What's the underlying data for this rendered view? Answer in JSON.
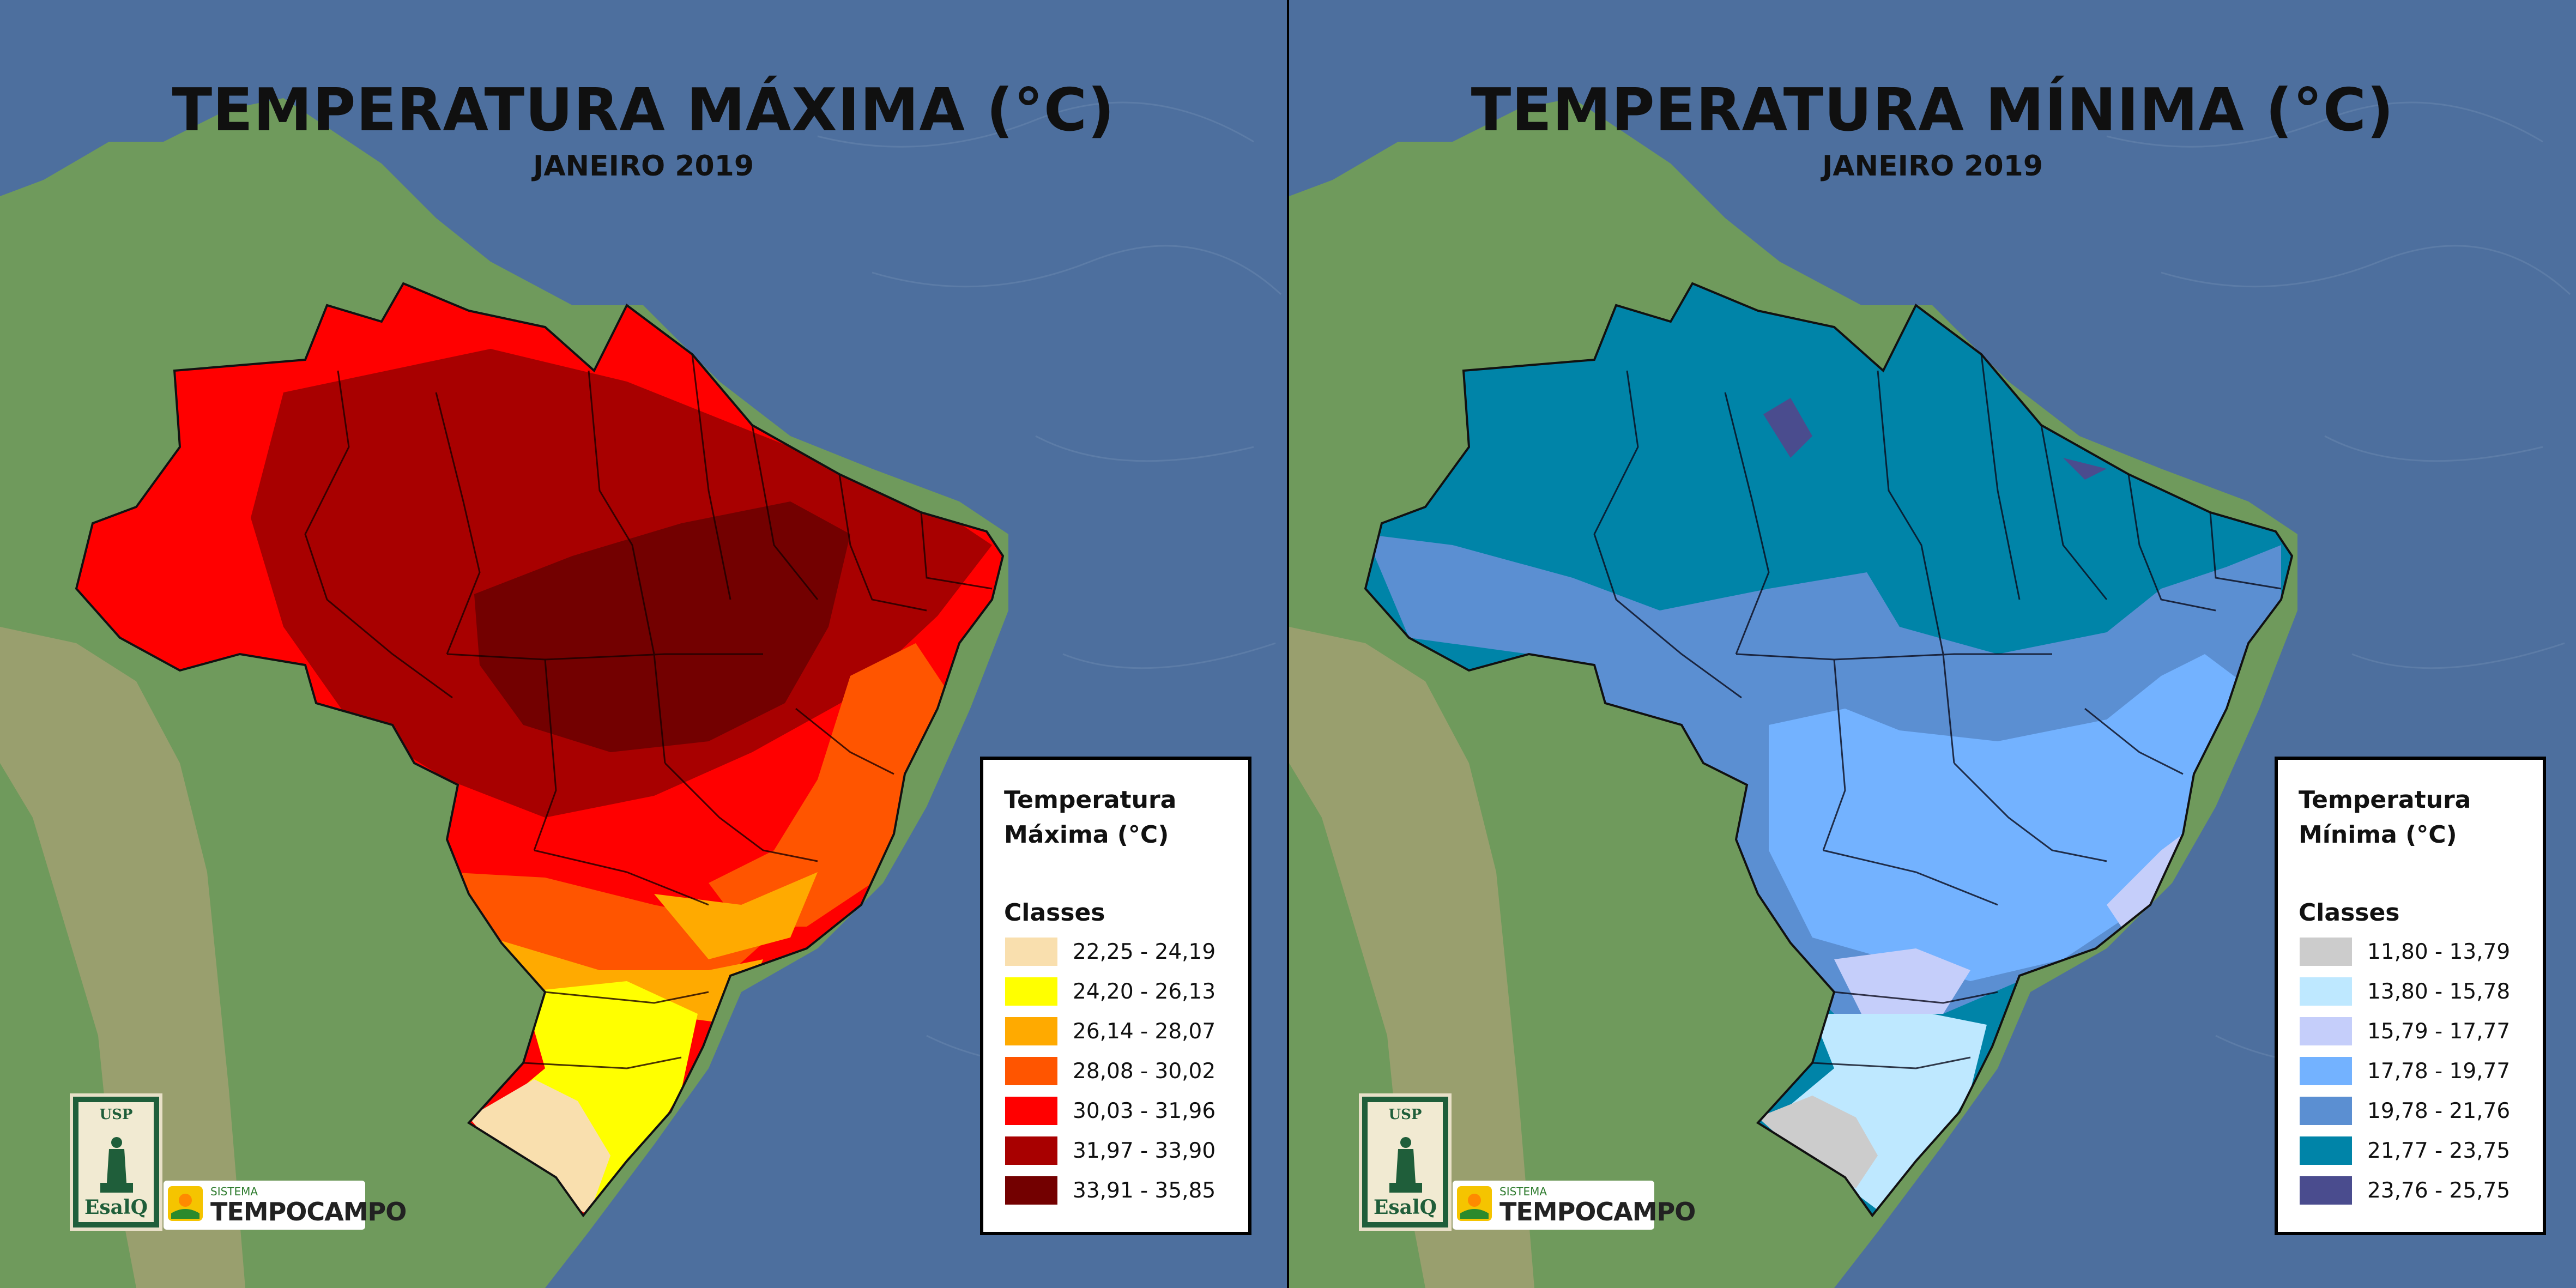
{
  "panels": [
    {
      "title": "TEMPERATURA MÁXIMA (°C)",
      "subtitle": "JANEIRO 2019",
      "legend": {
        "title_line1": "Temperatura",
        "title_line2": "Máxima (°C)",
        "classes_label": "Classes",
        "items": [
          {
            "label": "22,25 - 24,19",
            "color": "#f9dfae"
          },
          {
            "label": "24,20 - 26,13",
            "color": "#ffff00"
          },
          {
            "label": "26,14 - 28,07",
            "color": "#ffaa00"
          },
          {
            "label": "28,08 - 30,02",
            "color": "#ff5500"
          },
          {
            "label": "30,03 - 31,96",
            "color": "#ff0000"
          },
          {
            "label": "31,97 - 33,90",
            "color": "#a80000"
          },
          {
            "label": "33,91 - 35,85",
            "color": "#730000"
          }
        ]
      }
    },
    {
      "title": "TEMPERATURA MÍNIMA (°C)",
      "subtitle": "JANEIRO 2019",
      "legend": {
        "title_line1": "Temperatura",
        "title_line2": "Mínima (°C)",
        "classes_label": "Classes",
        "items": [
          {
            "label": "11,80 - 13,79",
            "color": "#cccccc"
          },
          {
            "label": "13,80 - 15,78",
            "color": "#bee8ff"
          },
          {
            "label": "15,79 - 17,77",
            "color": "#c5cefa"
          },
          {
            "label": "17,78 - 19,77",
            "color": "#73b2ff"
          },
          {
            "label": "19,78 - 21,76",
            "color": "#5b8fd2"
          },
          {
            "label": "21,77 - 23,75",
            "color": "#0084a8"
          },
          {
            "label": "23,76 - 25,75",
            "color": "#4a4c8e"
          }
        ]
      }
    }
  ],
  "logos": {
    "usp_text": "USP",
    "esalq_text": "EsalQ",
    "sistema_text": "SISTEMA",
    "tempocampo_text": "TEMPOCAMPO"
  },
  "colors": {
    "ocean": "#4d6f9e",
    "land": "#6f9a5c",
    "max_zones": [
      "#f9dfae",
      "#ffff00",
      "#ffaa00",
      "#ff5500",
      "#ff0000",
      "#a80000",
      "#730000"
    ],
    "min_zones": [
      "#cccccc",
      "#bee8ff",
      "#c5cefa",
      "#73b2ff",
      "#5b8fd2",
      "#0084a8",
      "#4a4c8e"
    ]
  }
}
